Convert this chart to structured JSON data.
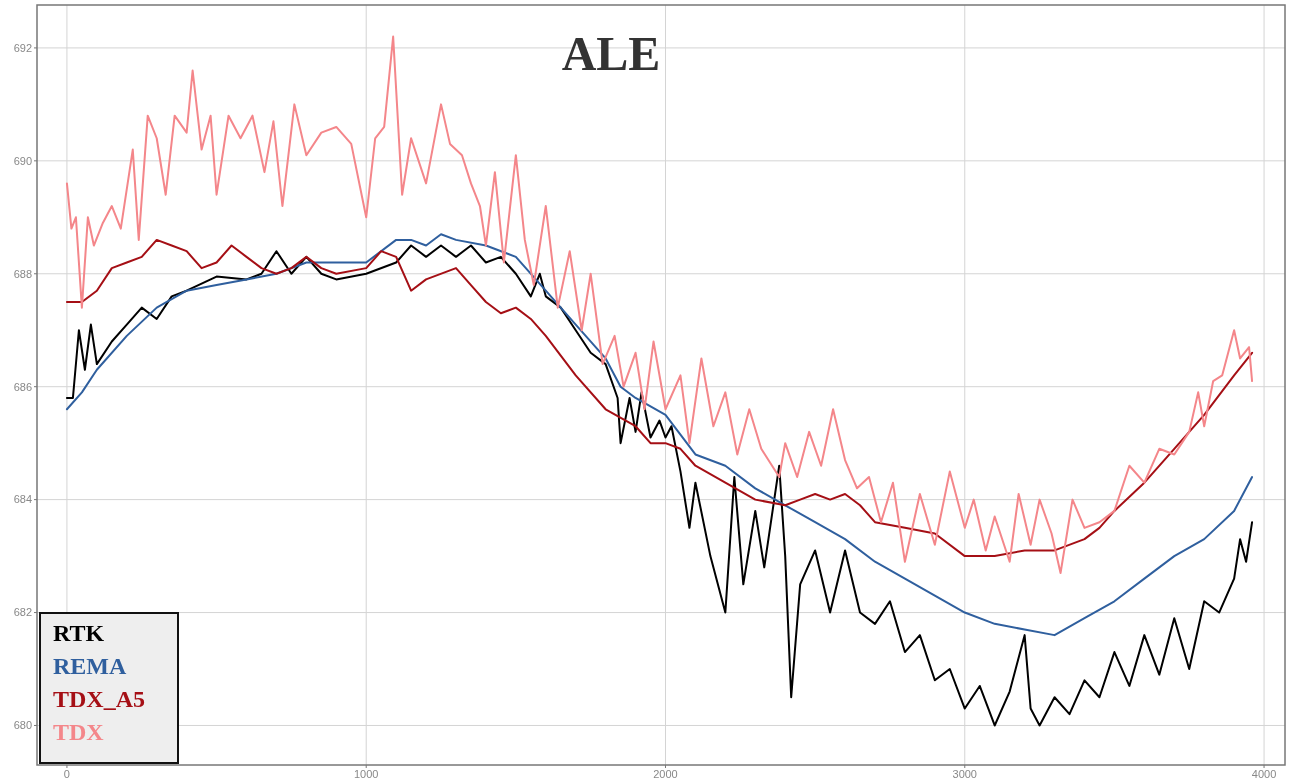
{
  "chart_data": {
    "type": "line",
    "title": "ALE",
    "xlim": [
      -100,
      4070
    ],
    "ylim": [
      679.3,
      692.76
    ],
    "xticks": [
      0,
      1000,
      2000,
      3000,
      4000
    ],
    "yticks": [
      680,
      682,
      684,
      686,
      688,
      690,
      692
    ],
    "grid": true,
    "legend": "bottom left",
    "line_style": "solid",
    "marker": "none",
    "series": [
      {
        "name": "RTK",
        "color": "#000000",
        "x": [
          0,
          20,
          40,
          60,
          80,
          100,
          150,
          200,
          250,
          300,
          350,
          400,
          500,
          600,
          650,
          700,
          750,
          800,
          850,
          900,
          1000,
          1100,
          1150,
          1200,
          1250,
          1300,
          1350,
          1400,
          1450,
          1500,
          1550,
          1580,
          1600,
          1650,
          1700,
          1750,
          1800,
          1840,
          1850,
          1880,
          1900,
          1920,
          1950,
          1980,
          2000,
          2020,
          2050,
          2080,
          2100,
          2150,
          2200,
          2230,
          2260,
          2300,
          2330,
          2380,
          2400,
          2420,
          2450,
          2500,
          2550,
          2600,
          2650,
          2700,
          2750,
          2800,
          2850,
          2900,
          2950,
          3000,
          3050,
          3100,
          3150,
          3200,
          3220,
          3250,
          3300,
          3350,
          3400,
          3450,
          3500,
          3550,
          3600,
          3650,
          3700,
          3750,
          3800,
          3850,
          3900,
          3920,
          3940,
          3960
        ],
        "values": [
          685.8,
          685.8,
          687.0,
          686.3,
          687.1,
          686.4,
          686.8,
          687.1,
          687.4,
          687.2,
          687.6,
          687.7,
          687.95,
          687.9,
          688.0,
          688.4,
          688.0,
          688.3,
          688.0,
          687.9,
          688.0,
          688.2,
          688.5,
          688.3,
          688.5,
          688.3,
          688.5,
          688.2,
          688.3,
          688.0,
          687.6,
          688.0,
          687.6,
          687.4,
          687.0,
          686.6,
          686.4,
          685.8,
          685.0,
          685.8,
          685.2,
          685.9,
          685.1,
          685.4,
          685.1,
          685.3,
          684.5,
          683.5,
          684.3,
          683.0,
          682.0,
          684.4,
          682.5,
          683.8,
          682.8,
          684.6,
          683.0,
          680.5,
          682.5,
          683.1,
          682.0,
          683.1,
          682.0,
          681.8,
          682.2,
          681.3,
          681.6,
          680.8,
          681.0,
          680.3,
          680.7,
          680.0,
          680.6,
          681.6,
          680.3,
          680.0,
          680.5,
          680.2,
          680.8,
          680.5,
          681.3,
          680.7,
          681.6,
          680.9,
          681.9,
          681.0,
          682.2,
          682.0,
          682.6,
          683.3,
          682.9,
          683.6
        ]
      },
      {
        "name": "REMA",
        "color": "#2f5f9e",
        "x": [
          0,
          50,
          100,
          200,
          300,
          400,
          500,
          600,
          700,
          800,
          900,
          1000,
          1100,
          1150,
          1200,
          1250,
          1300,
          1400,
          1500,
          1600,
          1700,
          1800,
          1850,
          1900,
          2000,
          2100,
          2200,
          2300,
          2400,
          2500,
          2600,
          2700,
          2800,
          2900,
          3000,
          3100,
          3200,
          3300,
          3400,
          3500,
          3600,
          3700,
          3800,
          3900,
          3960
        ],
        "values": [
          685.6,
          685.9,
          686.3,
          686.9,
          687.4,
          687.7,
          687.8,
          687.9,
          688.0,
          688.2,
          688.2,
          688.2,
          688.6,
          688.6,
          688.5,
          688.7,
          688.6,
          688.5,
          688.3,
          687.7,
          687.1,
          686.5,
          686.0,
          685.8,
          685.5,
          684.8,
          684.6,
          684.2,
          683.9,
          683.6,
          683.3,
          682.9,
          682.6,
          682.3,
          682.0,
          681.8,
          681.7,
          681.6,
          681.9,
          682.2,
          682.6,
          683.0,
          683.3,
          683.8,
          684.4
        ]
      },
      {
        "name": "TDX_A5",
        "color": "#a50f15",
        "x": [
          0,
          50,
          100,
          150,
          200,
          250,
          300,
          350,
          400,
          450,
          500,
          550,
          600,
          650,
          700,
          750,
          800,
          850,
          900,
          1000,
          1050,
          1100,
          1150,
          1200,
          1300,
          1350,
          1400,
          1450,
          1500,
          1550,
          1600,
          1700,
          1800,
          1900,
          1950,
          2000,
          2050,
          2100,
          2200,
          2300,
          2400,
          2450,
          2500,
          2550,
          2600,
          2650,
          2700,
          2800,
          2900,
          3000,
          3100,
          3200,
          3300,
          3400,
          3450,
          3500,
          3600,
          3700,
          3800,
          3900,
          3960
        ],
        "values": [
          687.5,
          687.5,
          687.7,
          688.1,
          688.2,
          688.3,
          688.6,
          688.5,
          688.4,
          688.1,
          688.2,
          688.5,
          688.3,
          688.1,
          688.0,
          688.1,
          688.3,
          688.1,
          688.0,
          688.1,
          688.4,
          688.3,
          687.7,
          687.9,
          688.1,
          687.8,
          687.5,
          687.3,
          687.4,
          687.2,
          686.9,
          686.2,
          685.6,
          685.3,
          685.0,
          685.0,
          684.9,
          684.6,
          684.3,
          684.0,
          683.9,
          684.0,
          684.1,
          684.0,
          684.1,
          683.9,
          683.6,
          683.5,
          683.4,
          683.0,
          683.0,
          683.1,
          683.1,
          683.3,
          683.5,
          683.8,
          684.3,
          684.9,
          685.5,
          686.2,
          686.6
        ]
      },
      {
        "name": "TDX",
        "color": "#f4868a",
        "x": [
          0,
          15,
          30,
          50,
          70,
          90,
          120,
          150,
          180,
          220,
          240,
          270,
          300,
          330,
          360,
          400,
          420,
          450,
          480,
          500,
          540,
          580,
          620,
          660,
          690,
          720,
          760,
          800,
          850,
          900,
          950,
          1000,
          1030,
          1060,
          1090,
          1120,
          1150,
          1200,
          1250,
          1280,
          1320,
          1350,
          1380,
          1400,
          1430,
          1460,
          1500,
          1530,
          1560,
          1600,
          1640,
          1680,
          1720,
          1750,
          1790,
          1830,
          1860,
          1900,
          1930,
          1960,
          2000,
          2050,
          2080,
          2120,
          2160,
          2200,
          2240,
          2280,
          2320,
          2380,
          2400,
          2440,
          2480,
          2520,
          2560,
          2600,
          2640,
          2680,
          2720,
          2760,
          2800,
          2850,
          2900,
          2950,
          3000,
          3030,
          3070,
          3100,
          3150,
          3180,
          3220,
          3250,
          3290,
          3320,
          3360,
          3400,
          3450,
          3500,
          3550,
          3600,
          3650,
          3700,
          3750,
          3780,
          3800,
          3830,
          3860,
          3900,
          3920,
          3950,
          3960
        ],
        "values": [
          689.6,
          688.8,
          689.0,
          687.4,
          689.0,
          688.5,
          688.9,
          689.2,
          688.8,
          690.2,
          688.6,
          690.8,
          690.4,
          689.4,
          690.8,
          690.5,
          691.6,
          690.2,
          690.8,
          689.4,
          690.8,
          690.4,
          690.8,
          689.8,
          690.7,
          689.2,
          691.0,
          690.1,
          690.5,
          690.6,
          690.3,
          689.0,
          690.4,
          690.6,
          692.2,
          689.4,
          690.4,
          689.6,
          691.0,
          690.3,
          690.1,
          689.6,
          689.2,
          688.5,
          689.8,
          688.2,
          690.1,
          688.6,
          687.8,
          689.2,
          687.4,
          688.4,
          687.0,
          688.0,
          686.4,
          686.9,
          686.0,
          686.6,
          685.6,
          686.8,
          685.6,
          686.2,
          685.0,
          686.5,
          685.3,
          685.9,
          684.8,
          685.6,
          684.9,
          684.4,
          685.0,
          684.4,
          685.2,
          684.6,
          685.6,
          684.7,
          684.2,
          684.4,
          683.6,
          684.3,
          682.9,
          684.1,
          683.2,
          684.5,
          683.5,
          684.0,
          683.1,
          683.7,
          682.9,
          684.1,
          683.2,
          684.0,
          683.4,
          682.7,
          684.0,
          683.5,
          683.6,
          683.8,
          684.6,
          684.3,
          684.9,
          684.8,
          685.2,
          685.9,
          685.3,
          686.1,
          686.2,
          687.0,
          686.5,
          686.7,
          686.1
        ]
      }
    ]
  }
}
